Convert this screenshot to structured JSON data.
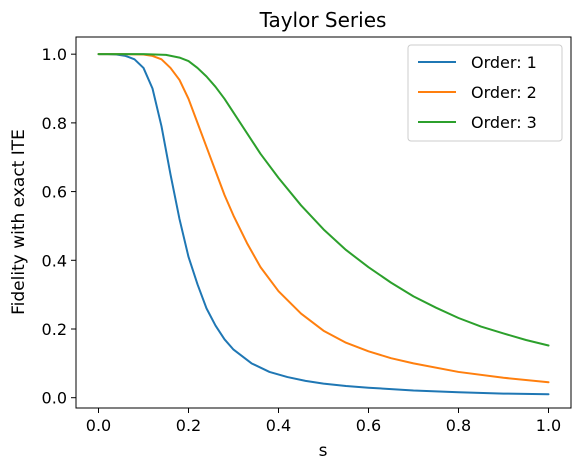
{
  "chart_data": {
    "type": "line",
    "title": "Taylor Series",
    "xlabel": "s",
    "ylabel": "Fidelity with exact ITE",
    "xlim": [
      -0.05,
      1.05
    ],
    "ylim": [
      -0.03,
      1.05
    ],
    "xticks": [
      0.0,
      0.2,
      0.4,
      0.6,
      0.8,
      1.0
    ],
    "xtick_labels": [
      "0.0",
      "0.2",
      "0.4",
      "0.6",
      "0.8",
      "1.0"
    ],
    "yticks": [
      0.0,
      0.2,
      0.4,
      0.6,
      0.8,
      1.0
    ],
    "ytick_labels": [
      "0.0",
      "0.2",
      "0.4",
      "0.6",
      "0.8",
      "1.0"
    ],
    "grid": false,
    "legend_position": "top-right",
    "series": [
      {
        "name": "Order: 1",
        "color": "#1f77b4",
        "x": [
          0.0,
          0.02,
          0.04,
          0.06,
          0.08,
          0.1,
          0.12,
          0.14,
          0.16,
          0.18,
          0.2,
          0.22,
          0.24,
          0.26,
          0.28,
          0.3,
          0.34,
          0.38,
          0.42,
          0.46,
          0.5,
          0.55,
          0.6,
          0.7,
          0.8,
          0.9,
          1.0
        ],
        "y": [
          1.0,
          1.0,
          0.999,
          0.995,
          0.985,
          0.96,
          0.9,
          0.79,
          0.65,
          0.52,
          0.41,
          0.33,
          0.26,
          0.21,
          0.17,
          0.14,
          0.1,
          0.075,
          0.06,
          0.049,
          0.041,
          0.034,
          0.029,
          0.021,
          0.016,
          0.012,
          0.01
        ]
      },
      {
        "name": "Order: 2",
        "color": "#ff7f0e",
        "x": [
          0.0,
          0.05,
          0.1,
          0.12,
          0.14,
          0.16,
          0.18,
          0.2,
          0.22,
          0.24,
          0.26,
          0.28,
          0.3,
          0.33,
          0.36,
          0.4,
          0.45,
          0.5,
          0.55,
          0.6,
          0.65,
          0.7,
          0.8,
          0.9,
          1.0
        ],
        "y": [
          1.0,
          1.0,
          0.999,
          0.995,
          0.985,
          0.96,
          0.925,
          0.87,
          0.8,
          0.73,
          0.66,
          0.59,
          0.53,
          0.45,
          0.38,
          0.31,
          0.245,
          0.195,
          0.16,
          0.135,
          0.115,
          0.1,
          0.075,
          0.058,
          0.045
        ]
      },
      {
        "name": "Order: 3",
        "color": "#2ca02c",
        "x": [
          0.0,
          0.05,
          0.1,
          0.15,
          0.18,
          0.2,
          0.22,
          0.24,
          0.26,
          0.28,
          0.3,
          0.33,
          0.36,
          0.4,
          0.45,
          0.5,
          0.55,
          0.6,
          0.65,
          0.7,
          0.75,
          0.8,
          0.85,
          0.9,
          0.95,
          1.0
        ],
        "y": [
          1.0,
          1.0,
          1.0,
          0.998,
          0.99,
          0.98,
          0.96,
          0.935,
          0.905,
          0.87,
          0.83,
          0.77,
          0.71,
          0.64,
          0.56,
          0.49,
          0.43,
          0.38,
          0.335,
          0.295,
          0.262,
          0.232,
          0.207,
          0.187,
          0.168,
          0.152
        ]
      }
    ]
  }
}
